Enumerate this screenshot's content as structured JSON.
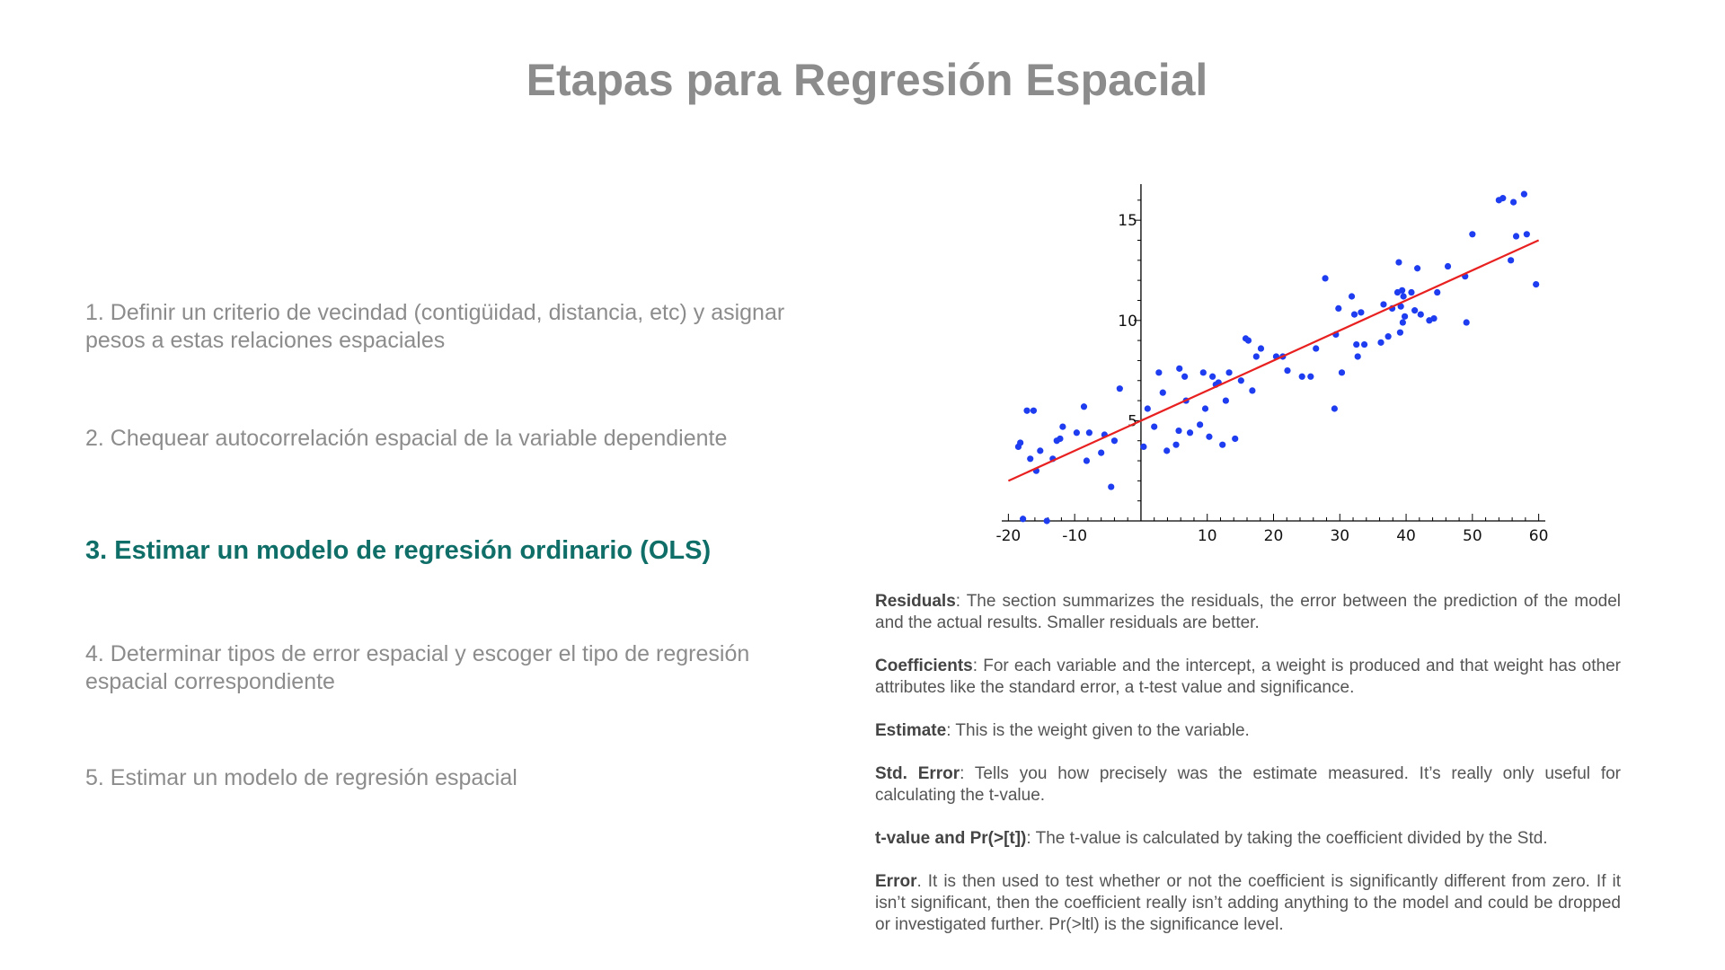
{
  "title": "Etapas para Regresión Espacial",
  "steps": [
    {
      "text": "1. Definir un criterio de vecindad (contigüidad, distancia, etc) y asignar pesos a estas relaciones espaciales",
      "active": false
    },
    {
      "text": "2. Chequear autocorrelación espacial de la variable dependiente",
      "active": false
    },
    {
      "text": "3. Estimar un modelo de regresión ordinario (OLS)",
      "active": true
    },
    {
      "text": "4. Determinar tipos de error espacial y escoger el tipo de regresión espacial correspondiente",
      "active": false
    },
    {
      "text": "5. Estimar un modelo de regresión espacial",
      "active": false
    }
  ],
  "notes": [
    {
      "term": "Residuals",
      "text": ": The section summarizes the residuals, the error between the prediction of the model and the actual results.  Smaller residuals are better."
    },
    {
      "term": "Coefficients",
      "text": ": For each variable and the intercept, a weight is produced and that weight has other attributes like the standard error, a t-test value and significance."
    },
    {
      "term": "Estimate",
      "text": ": This is the weight given to the variable."
    },
    {
      "term": "Std. Error",
      "text": ": Tells you how precisely was the estimate measured.   It’s really only useful for calculating the t-value."
    },
    {
      "term": "t-value and Pr(>[t])",
      "text": ": The t-value is calculated by taking the coefficient divided by the Std."
    },
    {
      "term": "Error",
      "text": ".  It is then used to test whether or not the coefficient is significantly different from zero.  If it isn’t significant, then the coefficient really isn’t adding anything to the model and could be dropped or investigated further.  Pr(>ltl) is the significance level."
    }
  ],
  "chart_data": {
    "type": "scatter",
    "title": "",
    "xlabel": "",
    "ylabel": "",
    "xlim": [
      -21,
      61
    ],
    "ylim": [
      0,
      16.8
    ],
    "xticks": [
      -20,
      -10,
      10,
      20,
      30,
      40,
      50,
      60
    ],
    "yticks": [
      5,
      10,
      15
    ],
    "xtick_labels": [
      "-20",
      "-10",
      "10",
      "20",
      "30",
      "40",
      "50",
      "60"
    ],
    "ytick_labels": [
      "5",
      "10",
      "15"
    ],
    "grid": false,
    "point_color": "#1e3cf0",
    "line_color": "#e82020",
    "fit_line": {
      "x": [
        -20,
        60
      ],
      "y": [
        2.0,
        14.0
      ]
    },
    "points": [
      [
        -18.5,
        3.7
      ],
      [
        -18.2,
        3.9
      ],
      [
        -17.8,
        0.1
      ],
      [
        -17.2,
        5.5
      ],
      [
        -16.7,
        3.1
      ],
      [
        -16.2,
        5.5
      ],
      [
        -15.8,
        2.5
      ],
      [
        -15.2,
        3.5
      ],
      [
        -14.2,
        0.0
      ],
      [
        -13.3,
        3.1
      ],
      [
        -12.7,
        4.0
      ],
      [
        -12.2,
        4.1
      ],
      [
        -11.8,
        4.7
      ],
      [
        -9.7,
        4.4
      ],
      [
        -8.6,
        5.7
      ],
      [
        -8.2,
        3.0
      ],
      [
        -7.8,
        4.4
      ],
      [
        -6.0,
        3.4
      ],
      [
        -5.5,
        4.3
      ],
      [
        -4.5,
        1.7
      ],
      [
        -4.0,
        4.0
      ],
      [
        -3.2,
        6.6
      ],
      [
        0.4,
        3.7
      ],
      [
        1.0,
        5.6
      ],
      [
        2.0,
        4.7
      ],
      [
        2.7,
        7.4
      ],
      [
        3.3,
        6.4
      ],
      [
        3.9,
        3.5
      ],
      [
        5.3,
        3.8
      ],
      [
        5.7,
        4.5
      ],
      [
        5.8,
        7.6
      ],
      [
        6.6,
        7.2
      ],
      [
        6.8,
        6.0
      ],
      [
        7.4,
        4.4
      ],
      [
        8.9,
        4.8
      ],
      [
        9.4,
        7.4
      ],
      [
        9.7,
        5.6
      ],
      [
        10.3,
        4.2
      ],
      [
        10.8,
        7.2
      ],
      [
        11.3,
        6.8
      ],
      [
        11.7,
        6.9
      ],
      [
        12.3,
        3.8
      ],
      [
        12.8,
        6.0
      ],
      [
        13.3,
        7.4
      ],
      [
        14.2,
        4.1
      ],
      [
        15.1,
        7.0
      ],
      [
        15.8,
        9.1
      ],
      [
        16.2,
        9.0
      ],
      [
        16.8,
        6.5
      ],
      [
        17.4,
        8.2
      ],
      [
        18.1,
        8.6
      ],
      [
        20.4,
        8.2
      ],
      [
        21.4,
        8.2
      ],
      [
        22.1,
        7.5
      ],
      [
        24.3,
        7.2
      ],
      [
        25.6,
        7.2
      ],
      [
        26.4,
        8.6
      ],
      [
        27.8,
        12.1
      ],
      [
        29.2,
        5.6
      ],
      [
        29.4,
        9.3
      ],
      [
        29.8,
        10.6
      ],
      [
        30.3,
        7.4
      ],
      [
        31.8,
        11.2
      ],
      [
        32.2,
        10.3
      ],
      [
        32.5,
        8.8
      ],
      [
        32.7,
        8.2
      ],
      [
        33.2,
        10.4
      ],
      [
        33.7,
        8.8
      ],
      [
        36.2,
        8.9
      ],
      [
        36.6,
        10.8
      ],
      [
        37.3,
        9.2
      ],
      [
        37.9,
        10.6
      ],
      [
        38.7,
        11.4
      ],
      [
        38.9,
        12.9
      ],
      [
        39.1,
        9.4
      ],
      [
        39.2,
        10.7
      ],
      [
        39.4,
        11.5
      ],
      [
        39.5,
        9.9
      ],
      [
        39.6,
        11.2
      ],
      [
        39.8,
        10.2
      ],
      [
        40.8,
        11.4
      ],
      [
        41.3,
        10.5
      ],
      [
        41.7,
        12.6
      ],
      [
        42.2,
        10.3
      ],
      [
        43.5,
        10.0
      ],
      [
        44.2,
        10.1
      ],
      [
        44.7,
        11.4
      ],
      [
        46.3,
        12.7
      ],
      [
        48.9,
        12.2
      ],
      [
        49.1,
        9.9
      ],
      [
        50.0,
        14.3
      ],
      [
        54.0,
        16.0
      ],
      [
        54.6,
        16.1
      ],
      [
        55.8,
        13.0
      ],
      [
        56.2,
        15.9
      ],
      [
        56.6,
        14.2
      ],
      [
        57.8,
        16.3
      ],
      [
        58.2,
        14.3
      ],
      [
        59.6,
        11.8
      ]
    ]
  }
}
